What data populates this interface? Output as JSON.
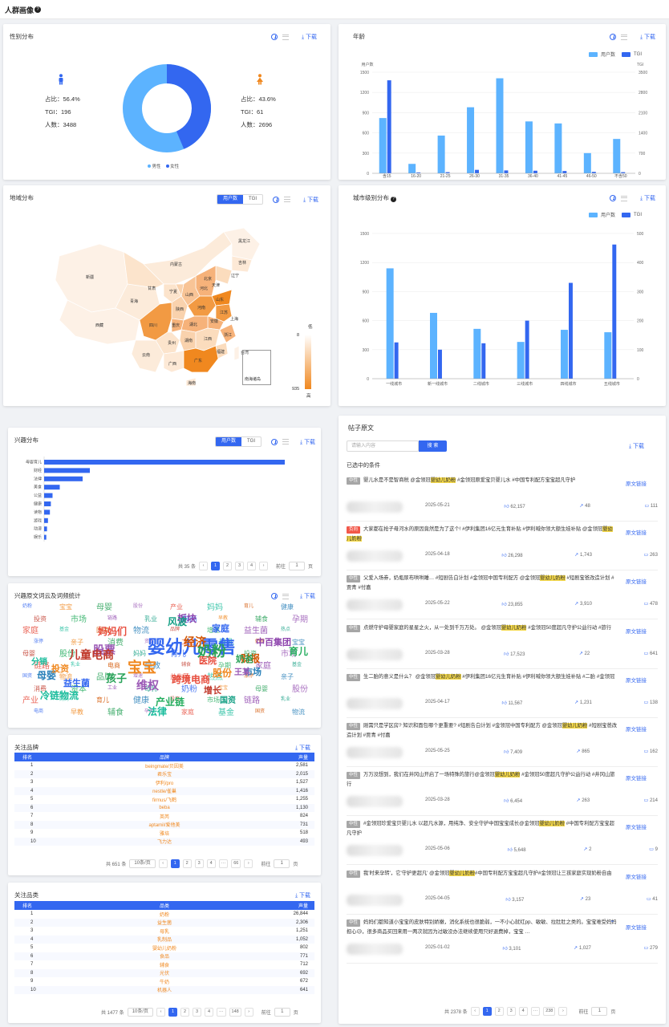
{
  "page_title": "人群画像",
  "common": {
    "download": "下载",
    "tab_users": "用户数",
    "tab_tgi": "TGI",
    "total_prefix": "共",
    "goto": "前往",
    "page_unit": "页",
    "ellipsis": "···",
    "prev": "‹",
    "next": "›"
  },
  "colors": {
    "light_blue": "#5cb3ff",
    "blue": "#3367f0",
    "orange": "#f0881f",
    "highlight": "#f5d94a",
    "neutral_tag": "#a6a6a6",
    "negative_tag": "#f2584a"
  },
  "gender": {
    "title": "性别分布",
    "male": {
      "ratio": "占比：56.4%",
      "tgi": "TGI：196",
      "count": "人数：3488",
      "value": 56.4
    },
    "female": {
      "ratio": "占比：43.6%",
      "tgi": "TGI：61",
      "count": "人数：2696",
      "value": 43.6
    },
    "legend_male": "男性",
    "legend_female": "女性"
  },
  "age": {
    "title": "年龄",
    "legend_users": "用户数",
    "legend_tgi": "TGI",
    "axis_left_title": "用户数",
    "axis_right_title": "TGI",
    "left_ticks": [
      "1500",
      "1200",
      "900",
      "600",
      "300",
      "0"
    ],
    "right_ticks": [
      "3500",
      "2800",
      "2100",
      "1400",
      "700",
      "0"
    ],
    "categories": [
      "含15",
      "16-20",
      "21-25",
      "26-30",
      "31-35",
      "36-40",
      "41-45",
      "46-50",
      "不含50"
    ]
  },
  "region": {
    "title": "地域分布",
    "legend_low": "低",
    "legend_high": "高",
    "legend_min": "8",
    "legend_max": "935",
    "inset": "南海诸岛",
    "provinces": [
      "新疆",
      "西藏",
      "青海",
      "甘肃",
      "内蒙古",
      "黑龙江",
      "吉林",
      "辽宁",
      "北京",
      "天津",
      "河北",
      "山西",
      "宁夏",
      "陕西",
      "山东",
      "河南",
      "江苏",
      "安徽",
      "上海",
      "湖北",
      "四川",
      "重庆",
      "浙江",
      "湖南",
      "江西",
      "贵州",
      "福建",
      "云南",
      "广西",
      "广东",
      "台湾",
      "海南"
    ]
  },
  "city": {
    "title": "城市级别分布",
    "legend_users": "用户数",
    "legend_tgi": "TGI",
    "left_ticks": [
      "1500",
      "1200",
      "900",
      "600",
      "300",
      "0"
    ],
    "right_ticks": [
      "500",
      "400",
      "300",
      "200",
      "100",
      "0"
    ],
    "categories": [
      "一线城市",
      "新一线城市",
      "二线城市",
      "三线城市",
      "四线城市",
      "五线城市"
    ]
  },
  "interest": {
    "title": "兴趣分布",
    "categories": [
      "母婴育儿",
      "财经",
      "法律",
      "美食",
      "公益",
      "健康",
      "读物",
      "游戏",
      "动漫",
      "娱乐"
    ],
    "values": [
      100,
      19,
      16,
      6.5,
      3.5,
      2.8,
      2.4,
      1.6,
      1.2,
      0.9
    ],
    "total": "共 35 条",
    "pages": [
      "1",
      "2",
      "3",
      "4"
    ],
    "goto_value": "1"
  },
  "wordcloud": {
    "title": "兴趣原文词云及词频统计",
    "words": [
      "婴幼儿零售",
      "宝宝",
      "奶粉",
      "股票",
      "跨境电商",
      "冷链物流",
      "经济",
      "母婴",
      "儿童电商",
      "产业链",
      "板块",
      "风波",
      "家庭",
      "股份",
      "孩子",
      "维权",
      "妈妈们",
      "法律",
      "财报",
      "市场",
      "增长",
      "育儿",
      "中百集团",
      "国资",
      "益生菌",
      "投资",
      "奶爸",
      "王某",
      "医院",
      "分销"
    ]
  },
  "brands": {
    "title": "关注品牌",
    "headers": [
      "排名",
      "品牌",
      "声量"
    ],
    "rows": [
      [
        "1",
        "beingmate/贝因美",
        "2,581"
      ],
      [
        "2",
        "君乐宝",
        "2,015"
      ],
      [
        "3",
        "伊利/pro",
        "1,527"
      ],
      [
        "4",
        "nestle/雀巢",
        "1,416"
      ],
      [
        "5",
        "firmus/飞鹤",
        "1,255"
      ],
      [
        "6",
        "beba",
        "1,130"
      ],
      [
        "7",
        "英芮",
        "824"
      ],
      [
        "8",
        "aptamil/爱他美",
        "731"
      ],
      [
        "9",
        "雅培",
        "518"
      ],
      [
        "10",
        "飞力达",
        "493"
      ]
    ],
    "total": "共 651 条",
    "page_size": "10条/页",
    "pages": [
      "1",
      "2",
      "3",
      "4"
    ],
    "last": "66",
    "goto_value": "1"
  },
  "categories": {
    "title": "关注品类",
    "headers": [
      "排名",
      "品类",
      "声量"
    ],
    "rows": [
      [
        "1",
        "奶粉",
        "26,844"
      ],
      [
        "2",
        "益生菌",
        "2,306"
      ],
      [
        "3",
        "母乳",
        "1,251"
      ],
      [
        "4",
        "乳制品",
        "1,052"
      ],
      [
        "5",
        "婴幼儿奶粉",
        "802"
      ],
      [
        "6",
        "食品",
        "771"
      ],
      [
        "7",
        "辅食",
        "712"
      ],
      [
        "8",
        "光伏",
        "692"
      ],
      [
        "9",
        "牛奶",
        "672"
      ],
      [
        "10",
        "机器人",
        "641"
      ]
    ],
    "total": "共 1477 条",
    "page_size": "10条/页",
    "pages": [
      "1",
      "2",
      "3",
      "4"
    ],
    "last": "148",
    "goto_value": "1"
  },
  "posts": {
    "title": "帖子原文",
    "search_placeholder": "请输入内容",
    "search_button": "搜 索",
    "selected_label": "已选中的条件",
    "link_label": "原文链接",
    "items": [
      {
        "tag": "中性",
        "negative": false,
        "pre": "婴儿水是不是智商税 @金领冠",
        "hl": "婴幼儿奶粉",
        "post": " #金领冠原爱宝贝婴儿水 #中国专利配方宝宝超凡守护",
        "date": "2025-05-21",
        "likes": "62,157",
        "shares": "48",
        "comments": "111"
      },
      {
        "tag": "负向",
        "negative": true,
        "pre": "大家都在抢子母河水的原因竟然是为了这个! #伊利集团16亿元生育补贴 #伊利喊你领大额生娃补贴 @金领冠",
        "hl": "婴幼儿奶粉",
        "post": "",
        "date": "2025-04-18",
        "likes": "26,298",
        "shares": "1,743",
        "comments": "263"
      },
      {
        "tag": "中性",
        "negative": false,
        "pre": "父爱入场券，奶瓶尿布哄哄睡… #短剧告白计划 #金领冠中国专利配方 @金领冠",
        "hl": "婴幼儿奶粉",
        "post": " #短剧宝爸改造计划 #贾青 #付嘉",
        "date": "2025-05-22",
        "likes": "23,855",
        "shares": "3,910",
        "comments": "478"
      },
      {
        "tag": "中性",
        "negative": false,
        "pre": "点燃守护母婴家庭的星星之火，从一处到千万万处。 @金领冠",
        "hl": "婴幼儿奶粉",
        "post": " #金领冠50度超凡守护公益行动 #旅行",
        "date": "2025-03-28",
        "likes": "17,523",
        "shares": "22",
        "comments": "641"
      },
      {
        "tag": "中性",
        "negative": false,
        "pre": "生二胎的意义是什么？ @金领冠",
        "hl": "婴幼儿奶粉",
        "post": " #伊利集团16亿元生育补贴 #伊利喊你领大额生娃补贴 #二胎 #金领冠",
        "date": "2025-04-17",
        "likes": "11,567",
        "shares": "1,231",
        "comments": "138"
      },
      {
        "tag": "中性",
        "negative": false,
        "pre": "刚需只是学区房? 知识和面包哪个更重要? #短剧告白计划 #金领冠中国专利配方 @金领冠",
        "hl": "婴幼儿奶粉",
        "post": " #短剧宝爸改造计划 #贾青 #付嘉",
        "date": "2025-05-25",
        "likes": "7,409",
        "shares": "865",
        "comments": "162"
      },
      {
        "tag": "中性",
        "negative": false,
        "pre": "万万没想到，我们在井冈山开启了一场特殊的旅行@金领冠",
        "hl": "婴幼儿奶粉",
        "post": " #金领冠50度超凡守护公益行动 #井冈山旅行",
        "date": "2025-03-28",
        "likes": "6,454",
        "shares": "263",
        "comments": "214"
      },
      {
        "tag": "中性",
        "negative": false,
        "pre": "#金领冠珍爱宝贝婴儿水 以超凡水源，用纯净、安全守护中国宝宝成长@金领冠",
        "hl": "婴幼儿奶粉",
        "post": " #中国专利配方宝宝超凡守护",
        "date": "2025-05-06",
        "likes": "5,648",
        "shares": "2",
        "comments": "9"
      },
      {
        "tag": "中性",
        "negative": false,
        "pre": "我'时来孕转'，它'守护更超凡' @金领冠",
        "hl": "婴幼儿奶粉",
        "post": "#中国专利配方宝宝超凡守护#金领冠让三孩家庭实现奶粉自由",
        "date": "2025-04-05",
        "likes": "3,157",
        "shares": "23",
        "comments": "41"
      },
      {
        "tag": "中性",
        "negative": false,
        "pre": "妈妈们都知道小宝宝的皮肤特别娇嫩，消化系统也很脆弱，一不小心就红pp、敏敏、拉肚肚之类的。宝宝难受妈妈担心😥，很多商品买回来用一两次就因为过敏没办法继续使用只好退费掉，宝宝 …",
        "hl": "",
        "post": "",
        "date": "2025-01-02",
        "likes": "3,101",
        "shares": "1,027",
        "comments": "279"
      }
    ],
    "total": "共 2378 条",
    "pages": [
      "1",
      "2",
      "3",
      "4"
    ],
    "last": "238",
    "goto_value": "1"
  }
}
